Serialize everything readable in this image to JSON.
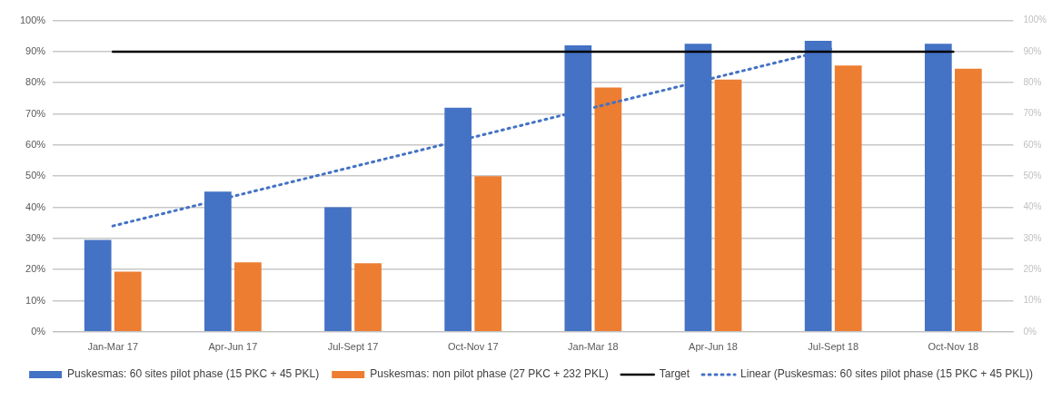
{
  "chart_data": {
    "type": "bar",
    "categories": [
      "Jan-Mar 17",
      "Apr-Jun 17",
      "Jul-Sept 17",
      "Oct-Nov 17",
      "Jan-Mar 18",
      "Apr-Jun 18",
      "Jul-Sept 18",
      "Oct-Nov 18"
    ],
    "series": [
      {
        "name": "Puskesmas: 60 sites pilot phase (15 PKC + 45 PKL)",
        "color": "#4472c4",
        "values": [
          29.5,
          45,
          40,
          72,
          92,
          92.5,
          93.5,
          92.5
        ]
      },
      {
        "name": "Puskesmas: non pilot phase (27 PKC + 232 PKL)",
        "color": "#ed7d31",
        "values": [
          19.3,
          22.3,
          22,
          50,
          78.5,
          81,
          85.5,
          84.5
        ]
      },
      {
        "name": "Target",
        "type": "line",
        "color": "#000000",
        "line_style": "solid",
        "values": [
          90,
          90,
          90,
          90,
          90,
          90,
          90,
          90
        ]
      },
      {
        "name": "Linear (Puskesmas: 60 sites pilot phase (15 PKC + 45 PKL))",
        "type": "line",
        "color": "#4472c4",
        "line_style": "dotted",
        "values": [
          34,
          43.5,
          53,
          62.5,
          72,
          81.5,
          91,
          null
        ]
      }
    ],
    "ylim": [
      0,
      100
    ],
    "yticks": [
      {
        "value": 0,
        "label": "0%"
      },
      {
        "value": 10,
        "label": "10%"
      },
      {
        "value": 20,
        "label": "20%"
      },
      {
        "value": 30,
        "label": "30%"
      },
      {
        "value": 40,
        "label": "40%"
      },
      {
        "value": 50,
        "label": "50%"
      },
      {
        "value": 60,
        "label": "60%"
      },
      {
        "value": 70,
        "label": "70%"
      },
      {
        "value": 80,
        "label": "80%"
      },
      {
        "value": 90,
        "label": "90%"
      },
      {
        "value": 100,
        "label": "100%"
      }
    ],
    "y2lim": [
      0,
      100
    ],
    "y2ticks": [
      {
        "value": 0,
        "label": "0%"
      },
      {
        "value": 10,
        "label": "10%"
      },
      {
        "value": 20,
        "label": "20%"
      },
      {
        "value": 30,
        "label": "30%"
      },
      {
        "value": 40,
        "label": "40%"
      },
      {
        "value": 50,
        "label": "50%"
      },
      {
        "value": 60,
        "label": "60%"
      },
      {
        "value": 70,
        "label": "70%"
      },
      {
        "value": 80,
        "label": "80%"
      },
      {
        "value": 90,
        "label": "90%"
      },
      {
        "value": 100,
        "label": "100%"
      }
    ],
    "grid": "y",
    "legend": "bottom",
    "marker": "none"
  }
}
